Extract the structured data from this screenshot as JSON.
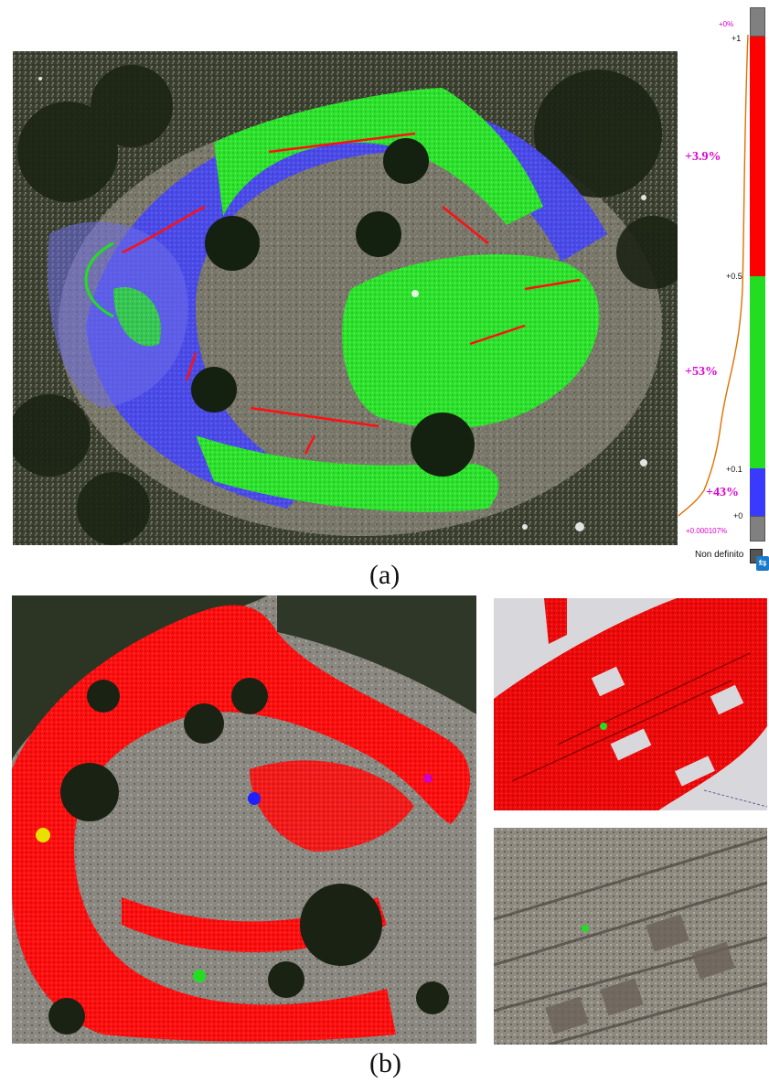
{
  "panel_a": {
    "caption": "(a)",
    "scale": {
      "tick_top": "+1",
      "tick_mid": "+0.5",
      "tick_low": "+0.1",
      "tick_zero": "+0",
      "pct_top": "+0%",
      "pct_red": "+3.9%",
      "pct_green": "+53%",
      "pct_blue": "+43%",
      "pct_bottom": "+0.000107%",
      "undefined_label": "Non definito",
      "colors": {
        "grey": "#808080",
        "red": "#ff0000",
        "green": "#22dd22",
        "blue": "#3a3aff",
        "curve": "#e07000"
      }
    }
  },
  "panel_b": {
    "caption": "(b)",
    "point_colors": {
      "yellow": "#e8e000",
      "blue": "#2020ff",
      "green": "#22dd22",
      "magenta": "#d000c0"
    }
  }
}
